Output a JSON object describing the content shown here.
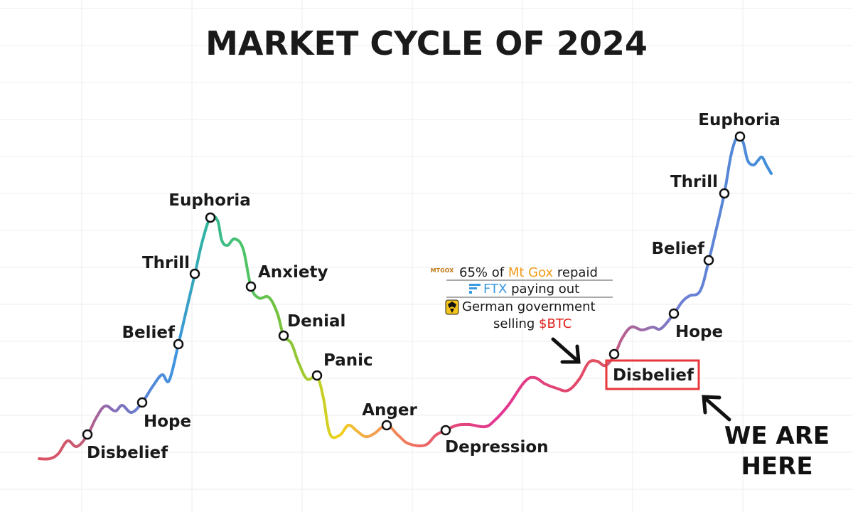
{
  "chart_data": {
    "type": "line",
    "title": "MARKET CYCLE OF 2024",
    "xlabel": "",
    "ylabel": "",
    "grid": true,
    "phases_cycle_1": [
      "Disbelief",
      "Hope",
      "Belief",
      "Thrill",
      "Euphoria",
      "Anxiety",
      "Denial",
      "Panic",
      "Anger",
      "Depression"
    ],
    "phases_cycle_2": [
      "Disbelief",
      "Hope",
      "Belief",
      "Thrill",
      "Euphoria"
    ],
    "annotations": {
      "mtgox_logo": "MTGOX",
      "mtgox_pre": "65% of ",
      "mtgox_name": "Mt Gox",
      "mtgox_post": " repaid",
      "ftx_name": "FTX",
      "ftx_post": " paying out",
      "german_line1": "German government",
      "german_line2_pre": "selling ",
      "german_ticker": "$BTC",
      "callout_line1": "WE ARE",
      "callout_line2": "HERE"
    },
    "colors": {
      "mtgox": "#f09a1a",
      "ftx": "#3b9ae0",
      "btc": "#e0201c",
      "highlight_box": "#e8373c"
    }
  }
}
